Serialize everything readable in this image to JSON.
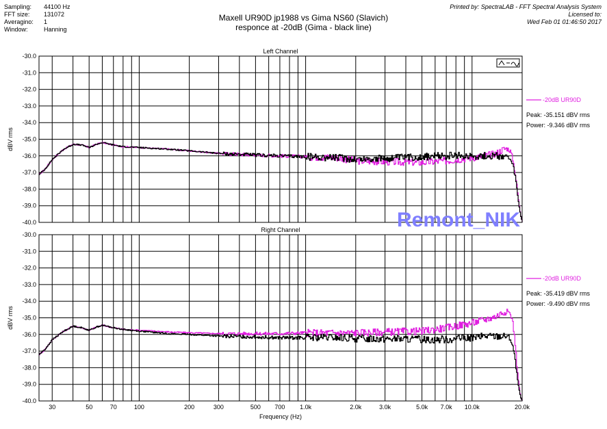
{
  "header": {
    "settings": [
      {
        "label": "Sampling:",
        "value": "44100 Hz"
      },
      {
        "label": "FFT size:",
        "value": "131072"
      },
      {
        "label": "Averagino:",
        "value": "1"
      },
      {
        "label": "Window:",
        "value": "Hanning"
      }
    ],
    "title_line1": "Maxell UR90D jp1988 vs Gima NS60 (Slavich)",
    "title_line2": "responce at -20dB (Gima - black line)",
    "printed_by": "Printed by: SpectraLAB - FFT Spectral Analysis System",
    "licensed": "Licensed to:",
    "date": "Wed Feb 01 01:46:50 2017"
  },
  "watermark": "Remont_NIK",
  "colors": {
    "magenta": "#e020e0",
    "black": "#000000",
    "watermark": "#7f7fff"
  },
  "chart_data": [
    {
      "type": "line",
      "title": "Left Channel",
      "xlabel": "",
      "ylabel": "dBV rms",
      "xscale": "log",
      "xlim": [
        25,
        20000
      ],
      "ylim": [
        -40.0,
        -30.0
      ],
      "yticks": [
        "-30.0",
        "-31.0",
        "-32.0",
        "-33.0",
        "-34.0",
        "-35.0",
        "-36.0",
        "-37.0",
        "-38.0",
        "-39.0",
        "-40.0"
      ],
      "grid": true,
      "legend": "-20dB UR90D",
      "peak": "Peak: -35.151 dBV rms",
      "power": "Power: -9.346 dBV rms",
      "series": [
        {
          "name": "-20dB UR90D",
          "color": "magenta",
          "x": [
            25,
            27,
            30,
            35,
            40,
            45,
            50,
            55,
            60,
            70,
            80,
            100,
            150,
            200,
            300,
            500,
            700,
            1000,
            1500,
            2000,
            3000,
            5000,
            7000,
            10000,
            12000,
            14000,
            15000,
            16000,
            16500,
            17000,
            17500,
            18000,
            18500,
            19000,
            19500,
            20000
          ],
          "y": [
            -37.1,
            -36.8,
            -36.2,
            -35.6,
            -35.3,
            -35.35,
            -35.5,
            -35.3,
            -35.2,
            -35.35,
            -35.45,
            -35.5,
            -35.6,
            -35.7,
            -35.85,
            -35.95,
            -36.0,
            -36.05,
            -36.1,
            -36.3,
            -36.35,
            -36.4,
            -36.3,
            -36.1,
            -36.0,
            -35.85,
            -35.65,
            -35.55,
            -35.6,
            -35.75,
            -36.2,
            -36.9,
            -37.8,
            -38.8,
            -39.6,
            -40.0
          ]
        },
        {
          "name": "",
          "color": "black",
          "x": [
            25,
            27,
            30,
            35,
            40,
            45,
            50,
            55,
            60,
            70,
            80,
            100,
            150,
            200,
            300,
            500,
            700,
            1000,
            1500,
            2000,
            3000,
            5000,
            7000,
            10000,
            12000,
            14000,
            15000,
            16000,
            16500,
            17000,
            17500,
            18000,
            18500,
            19000,
            19500,
            20000
          ],
          "y": [
            -37.1,
            -36.8,
            -36.2,
            -35.6,
            -35.3,
            -35.35,
            -35.5,
            -35.3,
            -35.2,
            -35.35,
            -35.45,
            -35.5,
            -35.6,
            -35.7,
            -35.85,
            -35.95,
            -36.0,
            -36.05,
            -36.1,
            -36.2,
            -36.15,
            -36.05,
            -36.0,
            -36.0,
            -36.0,
            -36.0,
            -36.0,
            -36.05,
            -36.15,
            -36.3,
            -36.6,
            -37.1,
            -38.0,
            -38.9,
            -39.6,
            -40.0
          ]
        }
      ]
    },
    {
      "type": "line",
      "title": "Right Channel",
      "xlabel": "Frequency (Hz)",
      "ylabel": "dBV rms",
      "xscale": "log",
      "xlim": [
        25,
        20000
      ],
      "ylim": [
        -40.0,
        -30.0
      ],
      "yticks": [
        "-30.0",
        "-31.0",
        "-32.0",
        "-33.0",
        "-34.0",
        "-35.0",
        "-36.0",
        "-37.0",
        "-38.0",
        "-39.0",
        "-40.0"
      ],
      "xticks": [
        {
          "v": 30,
          "label": "30"
        },
        {
          "v": 50,
          "label": "50"
        },
        {
          "v": 70,
          "label": "70"
        },
        {
          "v": 100,
          "label": "100"
        },
        {
          "v": 200,
          "label": "200"
        },
        {
          "v": 300,
          "label": "300"
        },
        {
          "v": 500,
          "label": "500"
        },
        {
          "v": 700,
          "label": "700"
        },
        {
          "v": 1000,
          "label": "1.0k"
        },
        {
          "v": 2000,
          "label": "2.0k"
        },
        {
          "v": 3000,
          "label": "3.0k"
        },
        {
          "v": 5000,
          "label": "5.0k"
        },
        {
          "v": 7000,
          "label": "7.0k"
        },
        {
          "v": 10000,
          "label": "10.0k"
        },
        {
          "v": 20000,
          "label": "20.0k"
        }
      ],
      "grid": true,
      "legend": "-20dB UR90D",
      "peak": "Peak: -35.419 dBV rms",
      "power": "Power: -9.490 dBV rms",
      "series": [
        {
          "name": "-20dB UR90D",
          "color": "magenta",
          "x": [
            25,
            27,
            30,
            35,
            40,
            45,
            50,
            55,
            60,
            70,
            80,
            100,
            150,
            200,
            300,
            500,
            700,
            1000,
            1500,
            2000,
            3000,
            5000,
            7000,
            10000,
            12000,
            14000,
            15000,
            16000,
            16500,
            17000,
            17500,
            18000,
            18500,
            19000,
            19500,
            20000
          ],
          "y": [
            -37.2,
            -36.9,
            -36.3,
            -35.8,
            -35.5,
            -35.6,
            -35.75,
            -35.55,
            -35.45,
            -35.6,
            -35.7,
            -35.75,
            -35.85,
            -35.9,
            -35.95,
            -35.95,
            -35.95,
            -35.9,
            -35.9,
            -35.9,
            -35.85,
            -35.8,
            -35.6,
            -35.3,
            -35.1,
            -34.9,
            -34.7,
            -34.6,
            -34.65,
            -34.8,
            -35.3,
            -36.3,
            -37.8,
            -39.0,
            -39.8,
            -40.0
          ]
        },
        {
          "name": "",
          "color": "black",
          "x": [
            25,
            27,
            30,
            35,
            40,
            45,
            50,
            55,
            60,
            70,
            80,
            100,
            150,
            200,
            300,
            500,
            700,
            1000,
            1500,
            2000,
            3000,
            5000,
            7000,
            10000,
            12000,
            14000,
            15000,
            16000,
            16500,
            17000,
            17500,
            18000,
            18500,
            19000,
            19500,
            20000
          ],
          "y": [
            -37.2,
            -36.9,
            -36.3,
            -35.8,
            -35.5,
            -35.6,
            -35.75,
            -35.55,
            -35.45,
            -35.6,
            -35.7,
            -35.8,
            -35.95,
            -36.0,
            -36.1,
            -36.15,
            -36.2,
            -36.2,
            -36.2,
            -36.25,
            -36.25,
            -36.3,
            -36.3,
            -36.2,
            -36.1,
            -36.1,
            -36.1,
            -36.1,
            -36.15,
            -36.3,
            -36.7,
            -37.4,
            -38.4,
            -39.2,
            -39.8,
            -40.0
          ]
        }
      ]
    }
  ]
}
